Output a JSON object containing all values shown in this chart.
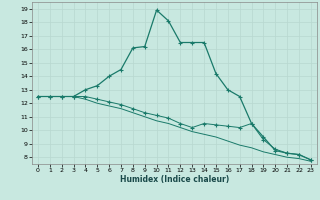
{
  "bg_color": "#c8e8e0",
  "grid_color": "#b8d8d0",
  "line_color": "#1a7a6a",
  "xlabel": "Humidex (Indice chaleur)",
  "xlim": [
    -0.5,
    23.5
  ],
  "ylim": [
    7.5,
    19.5
  ],
  "xticks": [
    0,
    1,
    2,
    3,
    4,
    5,
    6,
    7,
    8,
    9,
    10,
    11,
    12,
    13,
    14,
    15,
    16,
    17,
    18,
    19,
    20,
    21,
    22,
    23
  ],
  "yticks": [
    8,
    9,
    10,
    11,
    12,
    13,
    14,
    15,
    16,
    17,
    18,
    19
  ],
  "curve1_x": [
    0,
    1,
    2,
    3,
    4,
    5,
    6,
    7,
    8,
    9,
    10,
    11,
    12,
    13,
    14,
    15,
    16,
    17,
    18,
    19,
    20,
    21,
    22,
    23
  ],
  "curve1_y": [
    12.5,
    12.5,
    12.5,
    12.5,
    13.0,
    13.3,
    14.0,
    14.5,
    16.1,
    16.2,
    18.9,
    18.1,
    16.5,
    16.5,
    16.5,
    14.2,
    13.0,
    12.5,
    10.5,
    9.5,
    8.5,
    8.3,
    8.2,
    7.8
  ],
  "curve2_x": [
    0,
    1,
    2,
    3,
    4,
    5,
    6,
    7,
    8,
    9,
    10,
    11,
    12,
    13,
    14,
    15,
    16,
    17,
    18,
    19,
    20,
    21,
    22,
    23
  ],
  "curve2_y": [
    12.5,
    12.5,
    12.5,
    12.5,
    12.5,
    12.3,
    12.1,
    11.9,
    11.6,
    11.3,
    11.1,
    10.9,
    10.5,
    10.2,
    10.5,
    10.4,
    10.3,
    10.2,
    10.5,
    9.3,
    8.6,
    8.3,
    8.2,
    7.8
  ],
  "curve3_x": [
    0,
    1,
    2,
    3,
    4,
    5,
    6,
    7,
    8,
    9,
    10,
    11,
    12,
    13,
    14,
    15,
    16,
    17,
    18,
    19,
    20,
    21,
    22,
    23
  ],
  "curve3_y": [
    12.5,
    12.5,
    12.5,
    12.5,
    12.3,
    12.0,
    11.8,
    11.6,
    11.3,
    11.0,
    10.7,
    10.5,
    10.2,
    9.9,
    9.7,
    9.5,
    9.2,
    8.9,
    8.7,
    8.4,
    8.2,
    8.0,
    7.9,
    7.7
  ]
}
